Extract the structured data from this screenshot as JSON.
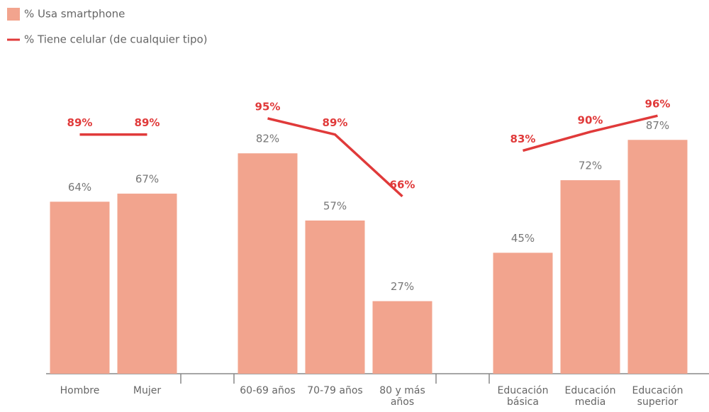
{
  "chart_data": {
    "type": "bar",
    "categories": [
      "Hombre",
      "Mujer",
      null,
      "60-69 años",
      "70-79 años",
      "80 y más años",
      null,
      "Educación básica",
      "Educación media",
      "Educación superior"
    ],
    "series": [
      {
        "name": "% Usa smartphone",
        "type": "bar",
        "color": "#f2a48e",
        "values": [
          64,
          67,
          null,
          82,
          57,
          27,
          null,
          45,
          72,
          87
        ],
        "value_labels": [
          "64%",
          "67%",
          null,
          "82%",
          "57%",
          "27%",
          null,
          "45%",
          "72%",
          "87%"
        ]
      },
      {
        "name": "% Tiene celular (de cualquier tipo)",
        "type": "line",
        "color": "#e03a3a",
        "values": [
          89,
          89,
          null,
          95,
          89,
          66,
          null,
          83,
          90,
          96
        ],
        "value_labels": [
          "89%",
          "89%",
          null,
          "95%",
          "89%",
          "66%",
          null,
          "83%",
          "90%",
          "96%"
        ]
      }
    ],
    "ylim": [
      0,
      100
    ]
  }
}
